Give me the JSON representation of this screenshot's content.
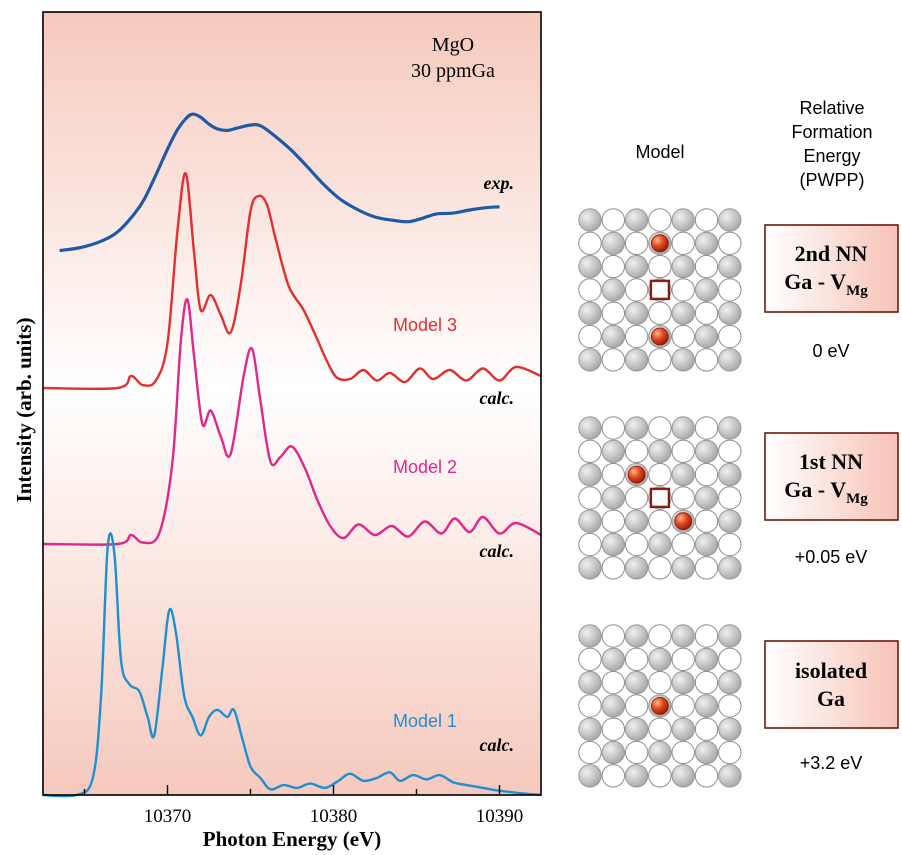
{
  "chart_data": {
    "type": "line",
    "xlabel": "Photon Energy (eV)",
    "ylabel": "Intensity (arb. units)",
    "xlim": [
      10362.5,
      10392.5
    ],
    "x_ticks": [
      10370,
      10380,
      10390
    ],
    "x_tick_labels": [
      "10370",
      "10380",
      "10390"
    ],
    "annotation": {
      "line1": "MgO",
      "line2": "30 ppmGa"
    },
    "series": [
      {
        "name": "exp.",
        "color": "#1e5aa8",
        "points": [
          [
            10363.5,
            -0.2
          ],
          [
            10364.8,
            0.2
          ],
          [
            10366.0,
            1.0
          ],
          [
            10367.0,
            2.2
          ],
          [
            10368.0,
            4.5
          ],
          [
            10368.6,
            6.4
          ],
          [
            10369.3,
            9.5
          ],
          [
            10370.0,
            12.8
          ],
          [
            10370.6,
            15.3
          ],
          [
            10371.1,
            16.7
          ],
          [
            10371.5,
            17.3
          ],
          [
            10372.0,
            16.9
          ],
          [
            10372.5,
            16.0
          ],
          [
            10373.0,
            15.4
          ],
          [
            10373.6,
            15.2
          ],
          [
            10374.2,
            15.5
          ],
          [
            10375.0,
            15.9
          ],
          [
            10375.6,
            15.8
          ],
          [
            10376.4,
            14.6
          ],
          [
            10377.4,
            12.8
          ],
          [
            10378.4,
            10.6
          ],
          [
            10379.4,
            8.3
          ],
          [
            10380.4,
            6.4
          ],
          [
            10381.5,
            5.0
          ],
          [
            10382.5,
            4.1
          ],
          [
            10383.5,
            3.7
          ],
          [
            10384.5,
            3.5
          ],
          [
            10385.3,
            3.9
          ],
          [
            10386.2,
            4.5
          ],
          [
            10387.2,
            4.6
          ],
          [
            10388.2,
            5.0
          ],
          [
            10389.2,
            5.3
          ],
          [
            10390.0,
            5.4
          ]
        ]
      },
      {
        "name": "Model 3",
        "label": "calc.",
        "color": "#e03030",
        "points": [
          [
            10362.5,
            0.0
          ],
          [
            10367.0,
            0.0
          ],
          [
            10367.8,
            0.8
          ],
          [
            10368.5,
            0.2
          ],
          [
            10369.3,
            0.5
          ],
          [
            10370.0,
            3.0
          ],
          [
            10370.6,
            10.5
          ],
          [
            10371.1,
            14.3
          ],
          [
            10371.6,
            9.0
          ],
          [
            10372.0,
            5.2
          ],
          [
            10372.6,
            6.2
          ],
          [
            10373.2,
            4.9
          ],
          [
            10373.8,
            3.7
          ],
          [
            10374.4,
            6.8
          ],
          [
            10375.0,
            11.8
          ],
          [
            10375.5,
            12.8
          ],
          [
            10376.0,
            12.2
          ],
          [
            10376.5,
            10.0
          ],
          [
            10377.3,
            6.8
          ],
          [
            10378.2,
            5.2
          ],
          [
            10379.0,
            3.3
          ],
          [
            10379.6,
            1.8
          ],
          [
            10380.2,
            0.7
          ],
          [
            10381.0,
            0.6
          ],
          [
            10381.8,
            1.2
          ],
          [
            10382.6,
            0.5
          ],
          [
            10383.4,
            1.0
          ],
          [
            10384.3,
            0.4
          ],
          [
            10385.2,
            1.3
          ],
          [
            10386.0,
            0.6
          ],
          [
            10387.0,
            1.2
          ],
          [
            10388.0,
            0.5
          ],
          [
            10389.0,
            1.3
          ],
          [
            10390.0,
            0.5
          ],
          [
            10391.0,
            1.4
          ],
          [
            10392.5,
            0.8
          ]
        ]
      },
      {
        "name": "Model 2",
        "label": "calc.",
        "color": "#e0288a",
        "points": [
          [
            10362.5,
            0.0
          ],
          [
            10367.0,
            0.0
          ],
          [
            10367.8,
            0.6
          ],
          [
            10368.5,
            0.1
          ],
          [
            10369.5,
            0.7
          ],
          [
            10370.3,
            5.5
          ],
          [
            10370.8,
            13.5
          ],
          [
            10371.2,
            16.3
          ],
          [
            10371.6,
            12.5
          ],
          [
            10372.1,
            8.0
          ],
          [
            10372.6,
            8.9
          ],
          [
            10373.2,
            7.2
          ],
          [
            10373.8,
            6.0
          ],
          [
            10374.6,
            11.3
          ],
          [
            10375.1,
            13.0
          ],
          [
            10375.6,
            9.5
          ],
          [
            10376.2,
            5.5
          ],
          [
            10376.8,
            5.8
          ],
          [
            10377.5,
            6.5
          ],
          [
            10378.3,
            5.0
          ],
          [
            10379.0,
            3.0
          ],
          [
            10379.8,
            1.2
          ],
          [
            10380.6,
            0.4
          ],
          [
            10381.5,
            1.3
          ],
          [
            10382.5,
            0.6
          ],
          [
            10383.5,
            1.2
          ],
          [
            10384.5,
            0.5
          ],
          [
            10385.5,
            1.5
          ],
          [
            10386.5,
            0.7
          ],
          [
            10387.3,
            1.7
          ],
          [
            10388.2,
            0.8
          ],
          [
            10389.0,
            1.8
          ],
          [
            10390.0,
            0.7
          ],
          [
            10391.0,
            1.4
          ],
          [
            10392.5,
            0.6
          ]
        ]
      },
      {
        "name": "Model 1",
        "label": "calc.",
        "color": "#1e8fd0",
        "points": [
          [
            10362.5,
            0.0
          ],
          [
            10364.5,
            0.0
          ],
          [
            10365.5,
            1.2
          ],
          [
            10366.0,
            7.0
          ],
          [
            10366.4,
            17.5
          ],
          [
            10366.8,
            17.0
          ],
          [
            10367.2,
            9.5
          ],
          [
            10367.7,
            7.8
          ],
          [
            10368.3,
            7.3
          ],
          [
            10368.8,
            5.5
          ],
          [
            10369.2,
            4.2
          ],
          [
            10369.7,
            9.0
          ],
          [
            10370.1,
            13.0
          ],
          [
            10370.5,
            11.5
          ],
          [
            10371.0,
            7.0
          ],
          [
            10371.5,
            5.5
          ],
          [
            10372.0,
            4.2
          ],
          [
            10372.5,
            5.5
          ],
          [
            10373.0,
            6.0
          ],
          [
            10373.6,
            5.5
          ],
          [
            10374.0,
            6.0
          ],
          [
            10374.5,
            4.0
          ],
          [
            10375.0,
            2.0
          ],
          [
            10375.6,
            1.2
          ],
          [
            10376.2,
            0.4
          ],
          [
            10377.0,
            0.7
          ],
          [
            10377.8,
            0.5
          ],
          [
            10378.6,
            0.8
          ],
          [
            10379.5,
            0.5
          ],
          [
            10380.3,
            1.0
          ],
          [
            10381.0,
            1.5
          ],
          [
            10381.8,
            1.0
          ],
          [
            10382.6,
            1.2
          ],
          [
            10383.4,
            1.6
          ],
          [
            10384.0,
            1.0
          ],
          [
            10384.8,
            1.4
          ],
          [
            10385.6,
            1.1
          ],
          [
            10386.4,
            1.4
          ],
          [
            10387.2,
            0.9
          ],
          [
            10388.0,
            0.7
          ],
          [
            10389.0,
            0.5
          ],
          [
            10390.0,
            0.3
          ],
          [
            10391.5,
            0.1
          ],
          [
            10392.5,
            0.0
          ]
        ]
      }
    ]
  },
  "models_panel": {
    "model_header": "Model",
    "energy_header": [
      "Relative",
      "Formation",
      "Energy",
      "(PWPP)"
    ],
    "rows": [
      {
        "label_line1": "2nd NN",
        "label_line2_main": "Ga - V",
        "label_line2_sub": "Mg",
        "energy": "0 eV"
      },
      {
        "label_line1": "1st NN",
        "label_line2_main": "Ga - V",
        "label_line2_sub": "Mg",
        "energy": "+0.05 eV"
      },
      {
        "label_line1": "isolated",
        "label_line2_main": "Ga",
        "label_line2_sub": "",
        "energy": "+3.2 eV"
      }
    ]
  }
}
